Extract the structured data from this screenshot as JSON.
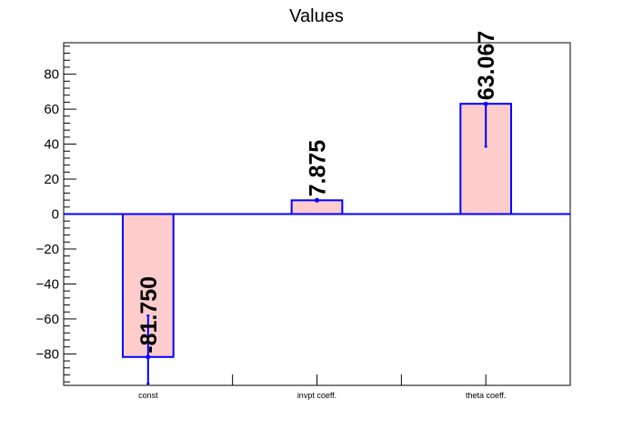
{
  "chart_data": {
    "type": "bar",
    "title": "Values",
    "xlabel": "",
    "ylabel": "",
    "categories": [
      "const",
      "invpt coeff.",
      "theta coeff."
    ],
    "values": [
      -81.75,
      7.875,
      63.067
    ],
    "value_labels": [
      "-81.750",
      "7.875",
      "63.067"
    ],
    "error_bars": [
      [
        -97,
        -58
      ],
      [
        7.2,
        8.6
      ],
      [
        38.5,
        63.067
      ]
    ],
    "ylim": [
      -98,
      98
    ],
    "yticks": [
      -80,
      -60,
      -40,
      -20,
      0,
      20,
      40,
      60,
      80
    ],
    "ytick_labels": [
      "−80",
      "−60",
      "−40",
      "−20",
      "0",
      "20",
      "40",
      "60",
      "80"
    ],
    "grid": false,
    "colors": {
      "bar_fill": "#ffcccc",
      "bar_edge": "#0000ff",
      "error_bar": "#0000ff",
      "zero_line": "#0000ff"
    }
  }
}
